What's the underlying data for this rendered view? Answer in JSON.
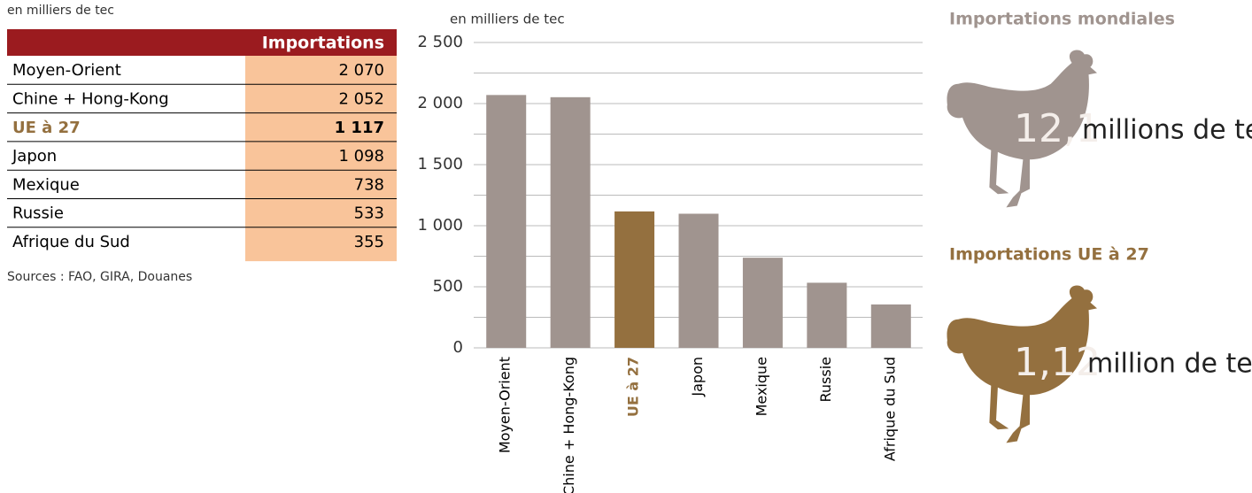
{
  "table": {
    "unit": "en milliers de tec",
    "header": "Importations",
    "header_color": "#9b1b1f",
    "value_color": "#f9c49a",
    "rows": [
      {
        "label": "Moyen-Orient",
        "value": "2 070",
        "color": "#000000"
      },
      {
        "label": "Chine + Hong-Kong",
        "value": "2 052",
        "color": "#000000"
      },
      {
        "label": "UE à 27",
        "value": "1 117",
        "color": "#94703f"
      },
      {
        "label": "Japon",
        "value": "1 098",
        "color": "#000000"
      },
      {
        "label": "Mexique",
        "value": "738",
        "color": "#000000"
      },
      {
        "label": "Russie",
        "value": "533",
        "color": "#000000"
      },
      {
        "label": "Afrique du Sud",
        "value": "355",
        "color": "#000000"
      }
    ],
    "sources": "Sources : FAO, GIRA, Douanes"
  },
  "chart_data": {
    "type": "bar",
    "subtitle": "en milliers de tec",
    "categories": [
      "Moyen-Orient",
      "Chine + Hong-Kong",
      "UE à 27",
      "Japon",
      "Mexique",
      "Russie",
      "Afrique du Sud"
    ],
    "values": [
      2070,
      2052,
      1117,
      1098,
      738,
      533,
      355
    ],
    "colors": [
      "#a0948f",
      "#a0948f",
      "#94703f",
      "#a0948f",
      "#a0948f",
      "#a0948f",
      "#a0948f"
    ],
    "label_colors": [
      "#000000",
      "#000000",
      "#94703f",
      "#000000",
      "#000000",
      "#000000",
      "#000000"
    ],
    "ylim": [
      0,
      2500
    ],
    "yticks": [
      0,
      500,
      {
        "value": 1000,
        "label": "1 000"
      },
      {
        "value": 1500,
        "label": "1 500"
      },
      {
        "value": 2000,
        "label": "2 000"
      },
      {
        "value": 2500,
        "label": "2 500"
      }
    ],
    "minor_yticks": [
      250,
      750,
      1250,
      1750,
      2250
    ],
    "grid": true
  },
  "infographic": {
    "world": {
      "title": "Importations mondiales",
      "value": "12,1",
      "unit": "millions de tec",
      "color": "#a0948f"
    },
    "eu": {
      "title": "Importations UE à 27",
      "value": "1,12",
      "unit": "million de tec",
      "color": "#94703f"
    }
  }
}
